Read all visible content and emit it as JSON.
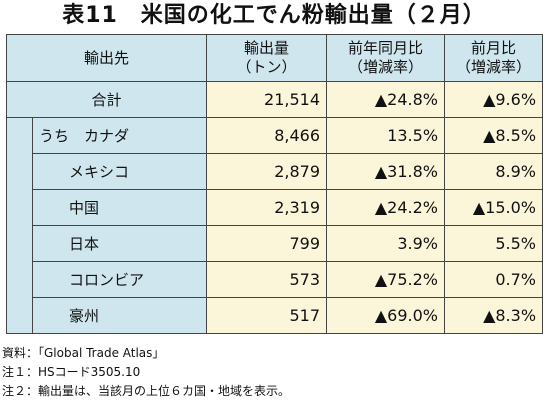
{
  "title": "表11　米国の化工でん粉輸出量（２月）",
  "header": {
    "dest": "輸出先",
    "volume_line1": "輸出量",
    "volume_line2": "（トン）",
    "yoy_line1": "前年同月比",
    "yoy_line2": "（増減率）",
    "mom_line1": "前月比",
    "mom_line2": "（増減率）"
  },
  "total": {
    "label": "合計",
    "volume": "21,514",
    "yoy": "▲24.8%",
    "mom": "▲9.6%"
  },
  "sub_prefix": "うち",
  "rows": [
    {
      "label": "カナダ",
      "volume": "8,466",
      "yoy": "13.5%",
      "mom": "▲8.5%"
    },
    {
      "label": "メキシコ",
      "volume": "2,879",
      "yoy": "▲31.8%",
      "mom": "8.9%"
    },
    {
      "label": "中国",
      "volume": "2,319",
      "yoy": "▲24.2%",
      "mom": "▲15.0%"
    },
    {
      "label": "日本",
      "volume": "799",
      "yoy": "3.9%",
      "mom": "5.5%"
    },
    {
      "label": "コロンビア",
      "volume": "573",
      "yoy": "▲75.2%",
      "mom": "0.7%"
    },
    {
      "label": "豪州",
      "volume": "517",
      "yoy": "▲69.0%",
      "mom": "▲8.3%"
    }
  ],
  "notes": [
    "資料：「Global Trade Atlas」",
    "注１：HSコード3505.10",
    "注２：輸出量は、当該月の上位６カ国・地域を表示。"
  ]
}
